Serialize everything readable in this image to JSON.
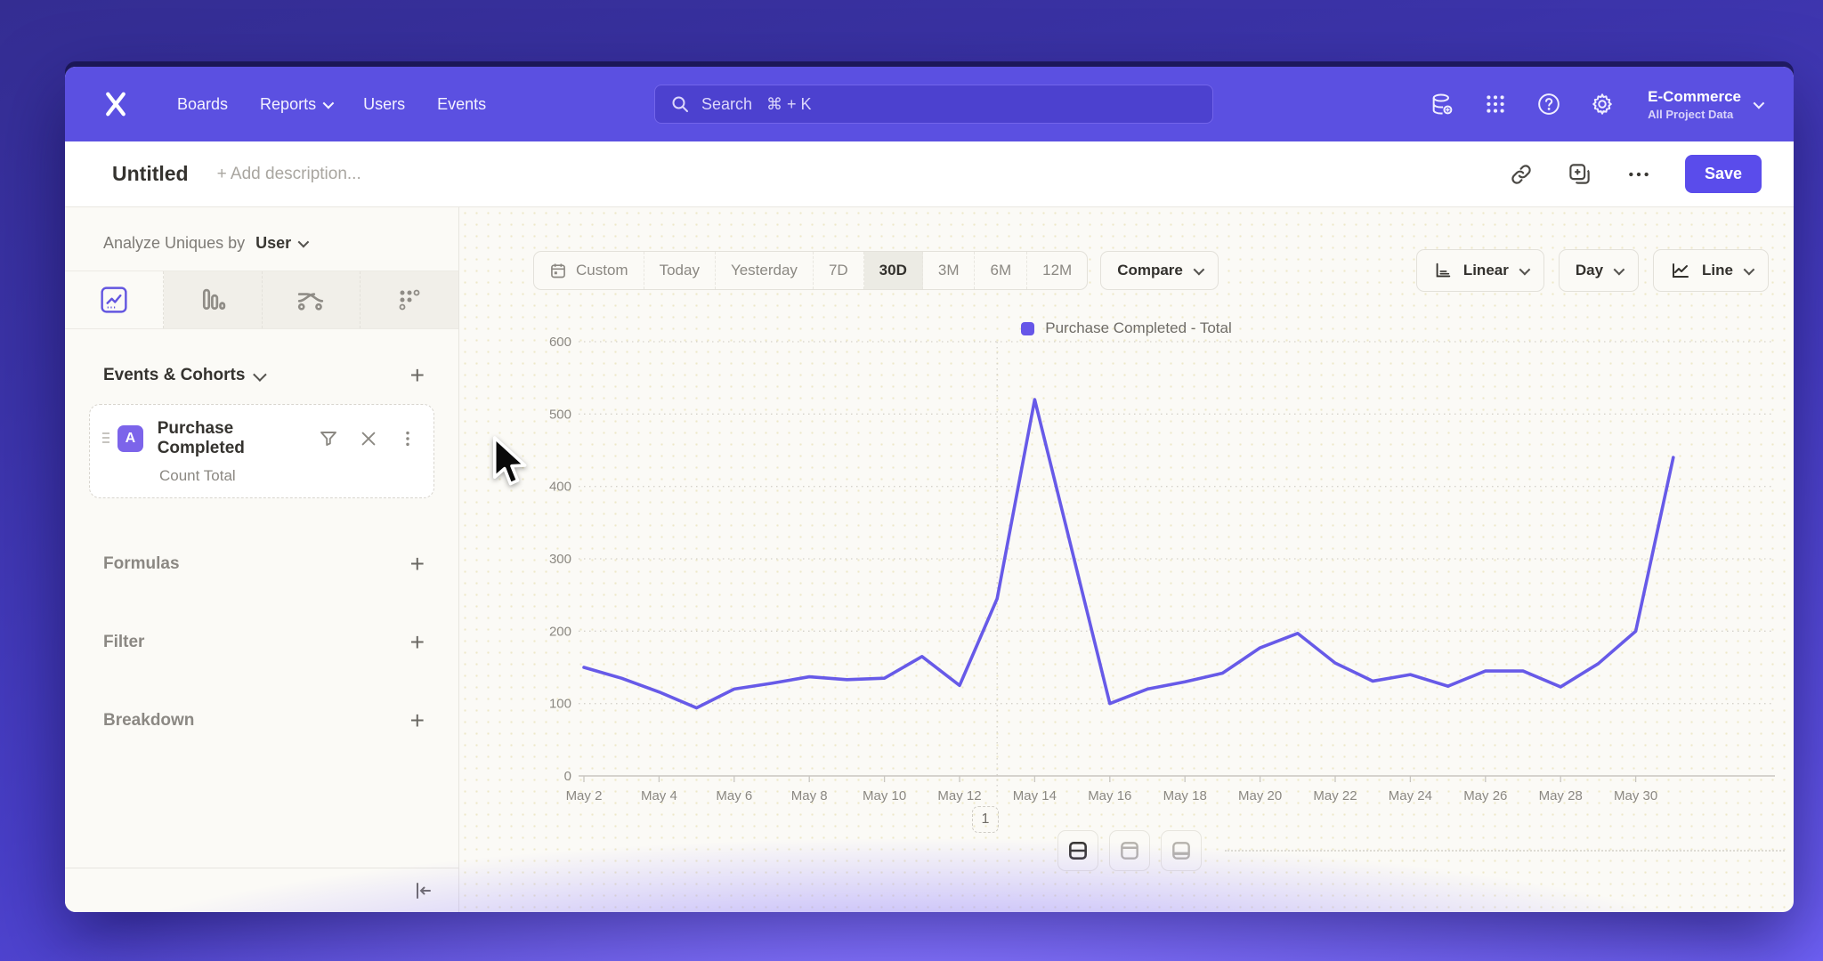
{
  "nav": {
    "items": [
      "Boards",
      "Reports",
      "Users",
      "Events"
    ],
    "search": {
      "label": "Search",
      "shortcut": "⌘ + K"
    },
    "project": {
      "name": "E-Commerce",
      "subtitle": "All Project Data"
    }
  },
  "header": {
    "title": "Untitled",
    "add_description": "+ Add description...",
    "save_label": "Save"
  },
  "sidebar": {
    "analyze_label": "Analyze Uniques by",
    "analyze_value": "User",
    "tabs": [
      "insights",
      "funnels",
      "flows",
      "retention"
    ],
    "selected_tab": "insights",
    "events_header": "Events & Cohorts",
    "event_card": {
      "badge": "A",
      "name": "Purchase Completed",
      "metric": "Count Total"
    },
    "sections": [
      "Formulas",
      "Filter",
      "Breakdown"
    ]
  },
  "toolbar": {
    "ranges": [
      "Custom",
      "Today",
      "Yesterday",
      "7D",
      "30D",
      "3M",
      "6M",
      "12M"
    ],
    "selected_range": "30D",
    "compare_label": "Compare",
    "scale_label": "Linear",
    "interval_label": "Day",
    "chart_type_label": "Line"
  },
  "pagination": "1",
  "chart_data": {
    "type": "line",
    "legend": "Purchase Completed - Total",
    "series_color": "#675ae8",
    "categories": [
      "May 2",
      "May 3",
      "May 4",
      "May 5",
      "May 6",
      "May 7",
      "May 8",
      "May 9",
      "May 10",
      "May 11",
      "May 12",
      "May 13",
      "May 14",
      "May 15",
      "May 16",
      "May 17",
      "May 18",
      "May 19",
      "May 20",
      "May 21",
      "May 22",
      "May 23",
      "May 24",
      "May 25",
      "May 26",
      "May 27",
      "May 28",
      "May 29",
      "May 30",
      "May 31"
    ],
    "values": [
      150,
      135,
      116,
      94,
      120,
      128,
      137,
      133,
      135,
      165,
      125,
      245,
      520,
      310,
      100,
      120,
      130,
      142,
      177,
      197,
      156,
      131,
      140,
      124,
      145,
      145,
      123,
      155,
      200,
      440
    ],
    "yticks": [
      0,
      100,
      200,
      300,
      400,
      500,
      600
    ],
    "ylim": [
      0,
      600
    ],
    "xtick_labels": [
      "May 2",
      "May 4",
      "May 6",
      "May 8",
      "May 10",
      "May 12",
      "May 14",
      "May 16",
      "May 18",
      "May 20",
      "May 22",
      "May 24",
      "May 26",
      "May 28",
      "May 30"
    ],
    "vertical_gridline_at": "May 13",
    "grid": "dotted"
  }
}
